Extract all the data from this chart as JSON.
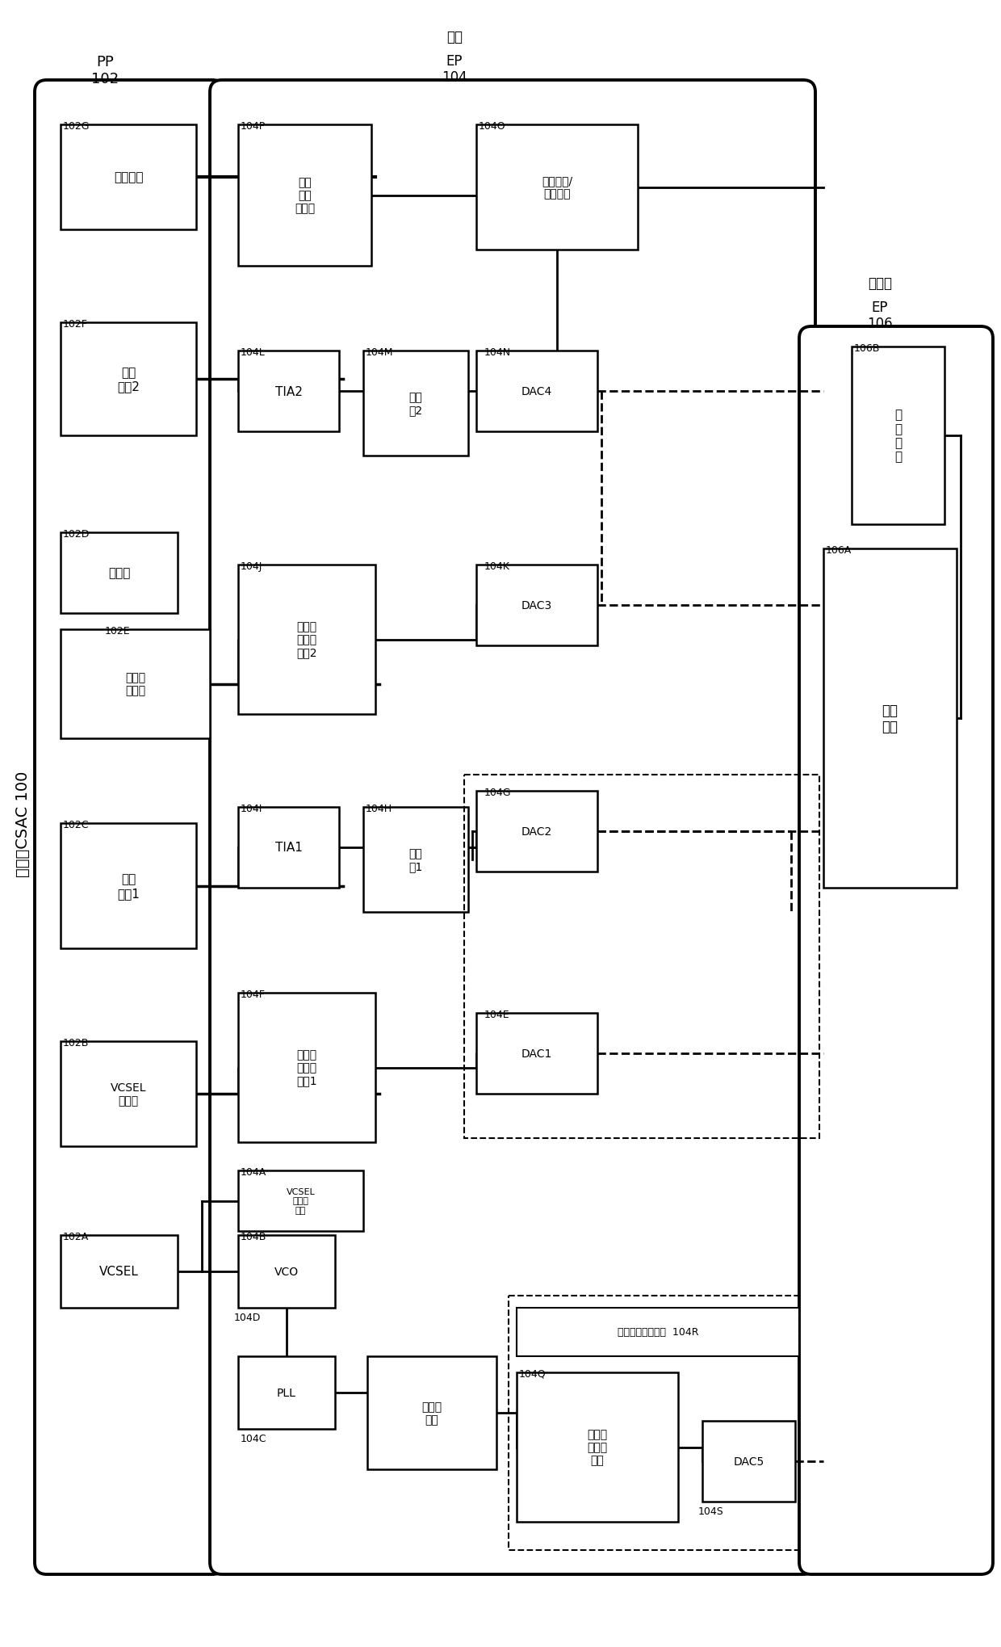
{
  "figsize": [
    12.4,
    20.4
  ],
  "dpi": 100,
  "title": "改善的CSAC 100",
  "pp_label": "PP\n102",
  "ep_label": "温控\nEP\n104",
  "nt_label": "非温控\nEP\n106",
  "blocks": {
    "102G": {
      "text": "磁场线圈",
      "fs": 11
    },
    "102F": {
      "text": "光检\n测器2",
      "fs": 11
    },
    "102D": {
      "text": "气体池",
      "fs": 11
    },
    "102E": {
      "text": "气体池\n加热器",
      "fs": 10
    },
    "102C": {
      "text": "光检\n测器1",
      "fs": 11
    },
    "102B": {
      "text": "VCSEL\n加热器",
      "fs": 10
    },
    "102A": {
      "text": "VCSEL",
      "fs": 11
    },
    "104P": {
      "text": "线圈\n电流\n控制器",
      "fs": 10
    },
    "104O": {
      "text": "精确电压/\n电流参考",
      "fs": 10
    },
    "104N": {
      "text": "DAC4",
      "fs": 10
    },
    "104L": {
      "text": "TIA2",
      "fs": 10
    },
    "104M": {
      "text": "滤波\n器2",
      "fs": 10
    },
    "104J": {
      "text": "加热器\n电流控\n制器2",
      "fs": 10
    },
    "104K": {
      "text": "DAC3",
      "fs": 10
    },
    "104I": {
      "text": "TIA1",
      "fs": 10
    },
    "104H": {
      "text": "滤波\n器1",
      "fs": 10
    },
    "104G": {
      "text": "DAC2",
      "fs": 10
    },
    "104F": {
      "text": "加热器\n电流控\n制器1",
      "fs": 10
    },
    "104E": {
      "text": "DAC1",
      "fs": 10
    },
    "VCO": {
      "text": "VCO",
      "fs": 10
    },
    "PLL": {
      "text": "PLL",
      "fs": 10
    },
    "XTAL": {
      "text": "晶体振\n荡器",
      "fs": 10
    },
    "104A": {
      "text": "VCSEL\n电流控\n制器",
      "fs": 9
    },
    "104Q": {
      "text": "加热器\n电流控\n制器",
      "fs": 10
    },
    "DAC5": {
      "text": "DAC5",
      "fs": 10
    },
    "106A": {
      "text": "微控\n制器",
      "fs": 11
    },
    "106B": {
      "text": "功\n率\n调\n节",
      "fs": 11
    }
  }
}
